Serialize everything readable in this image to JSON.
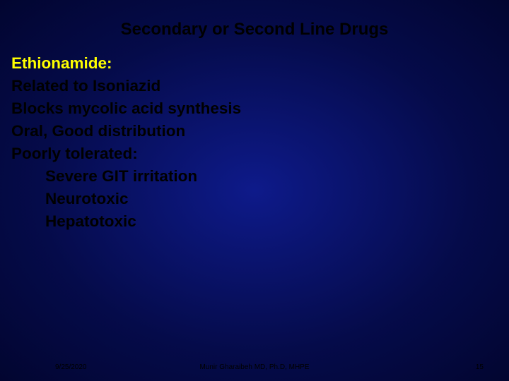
{
  "title": {
    "text": "Secondary or Second Line Drugs",
    "color": "#000000",
    "fontsize": 24
  },
  "body": {
    "lines": {
      "l0": "Ethionamide:",
      "l1": "Related to Isoniazid",
      "l2": "Blocks mycolic acid synthesis",
      "l3": "Oral, Good distribution",
      "l4": "Poorly tolerated:",
      "l5": "Severe GIT irritation",
      "l6": "Neurotoxic",
      "l7": "Hepatotoxic"
    },
    "highlight_color": "#ffff00",
    "text_color": "#000000",
    "fontsize": 22.5
  },
  "footer": {
    "date": "9/25/2020",
    "author": "Munir Gharaibeh MD, Ph.D, MHPE",
    "page": "15",
    "fontsize": 10,
    "color": "#000000"
  },
  "background": {
    "gradient_center": "#0e1a8a",
    "gradient_mid": "#050b4a",
    "gradient_edge": "#020530"
  }
}
